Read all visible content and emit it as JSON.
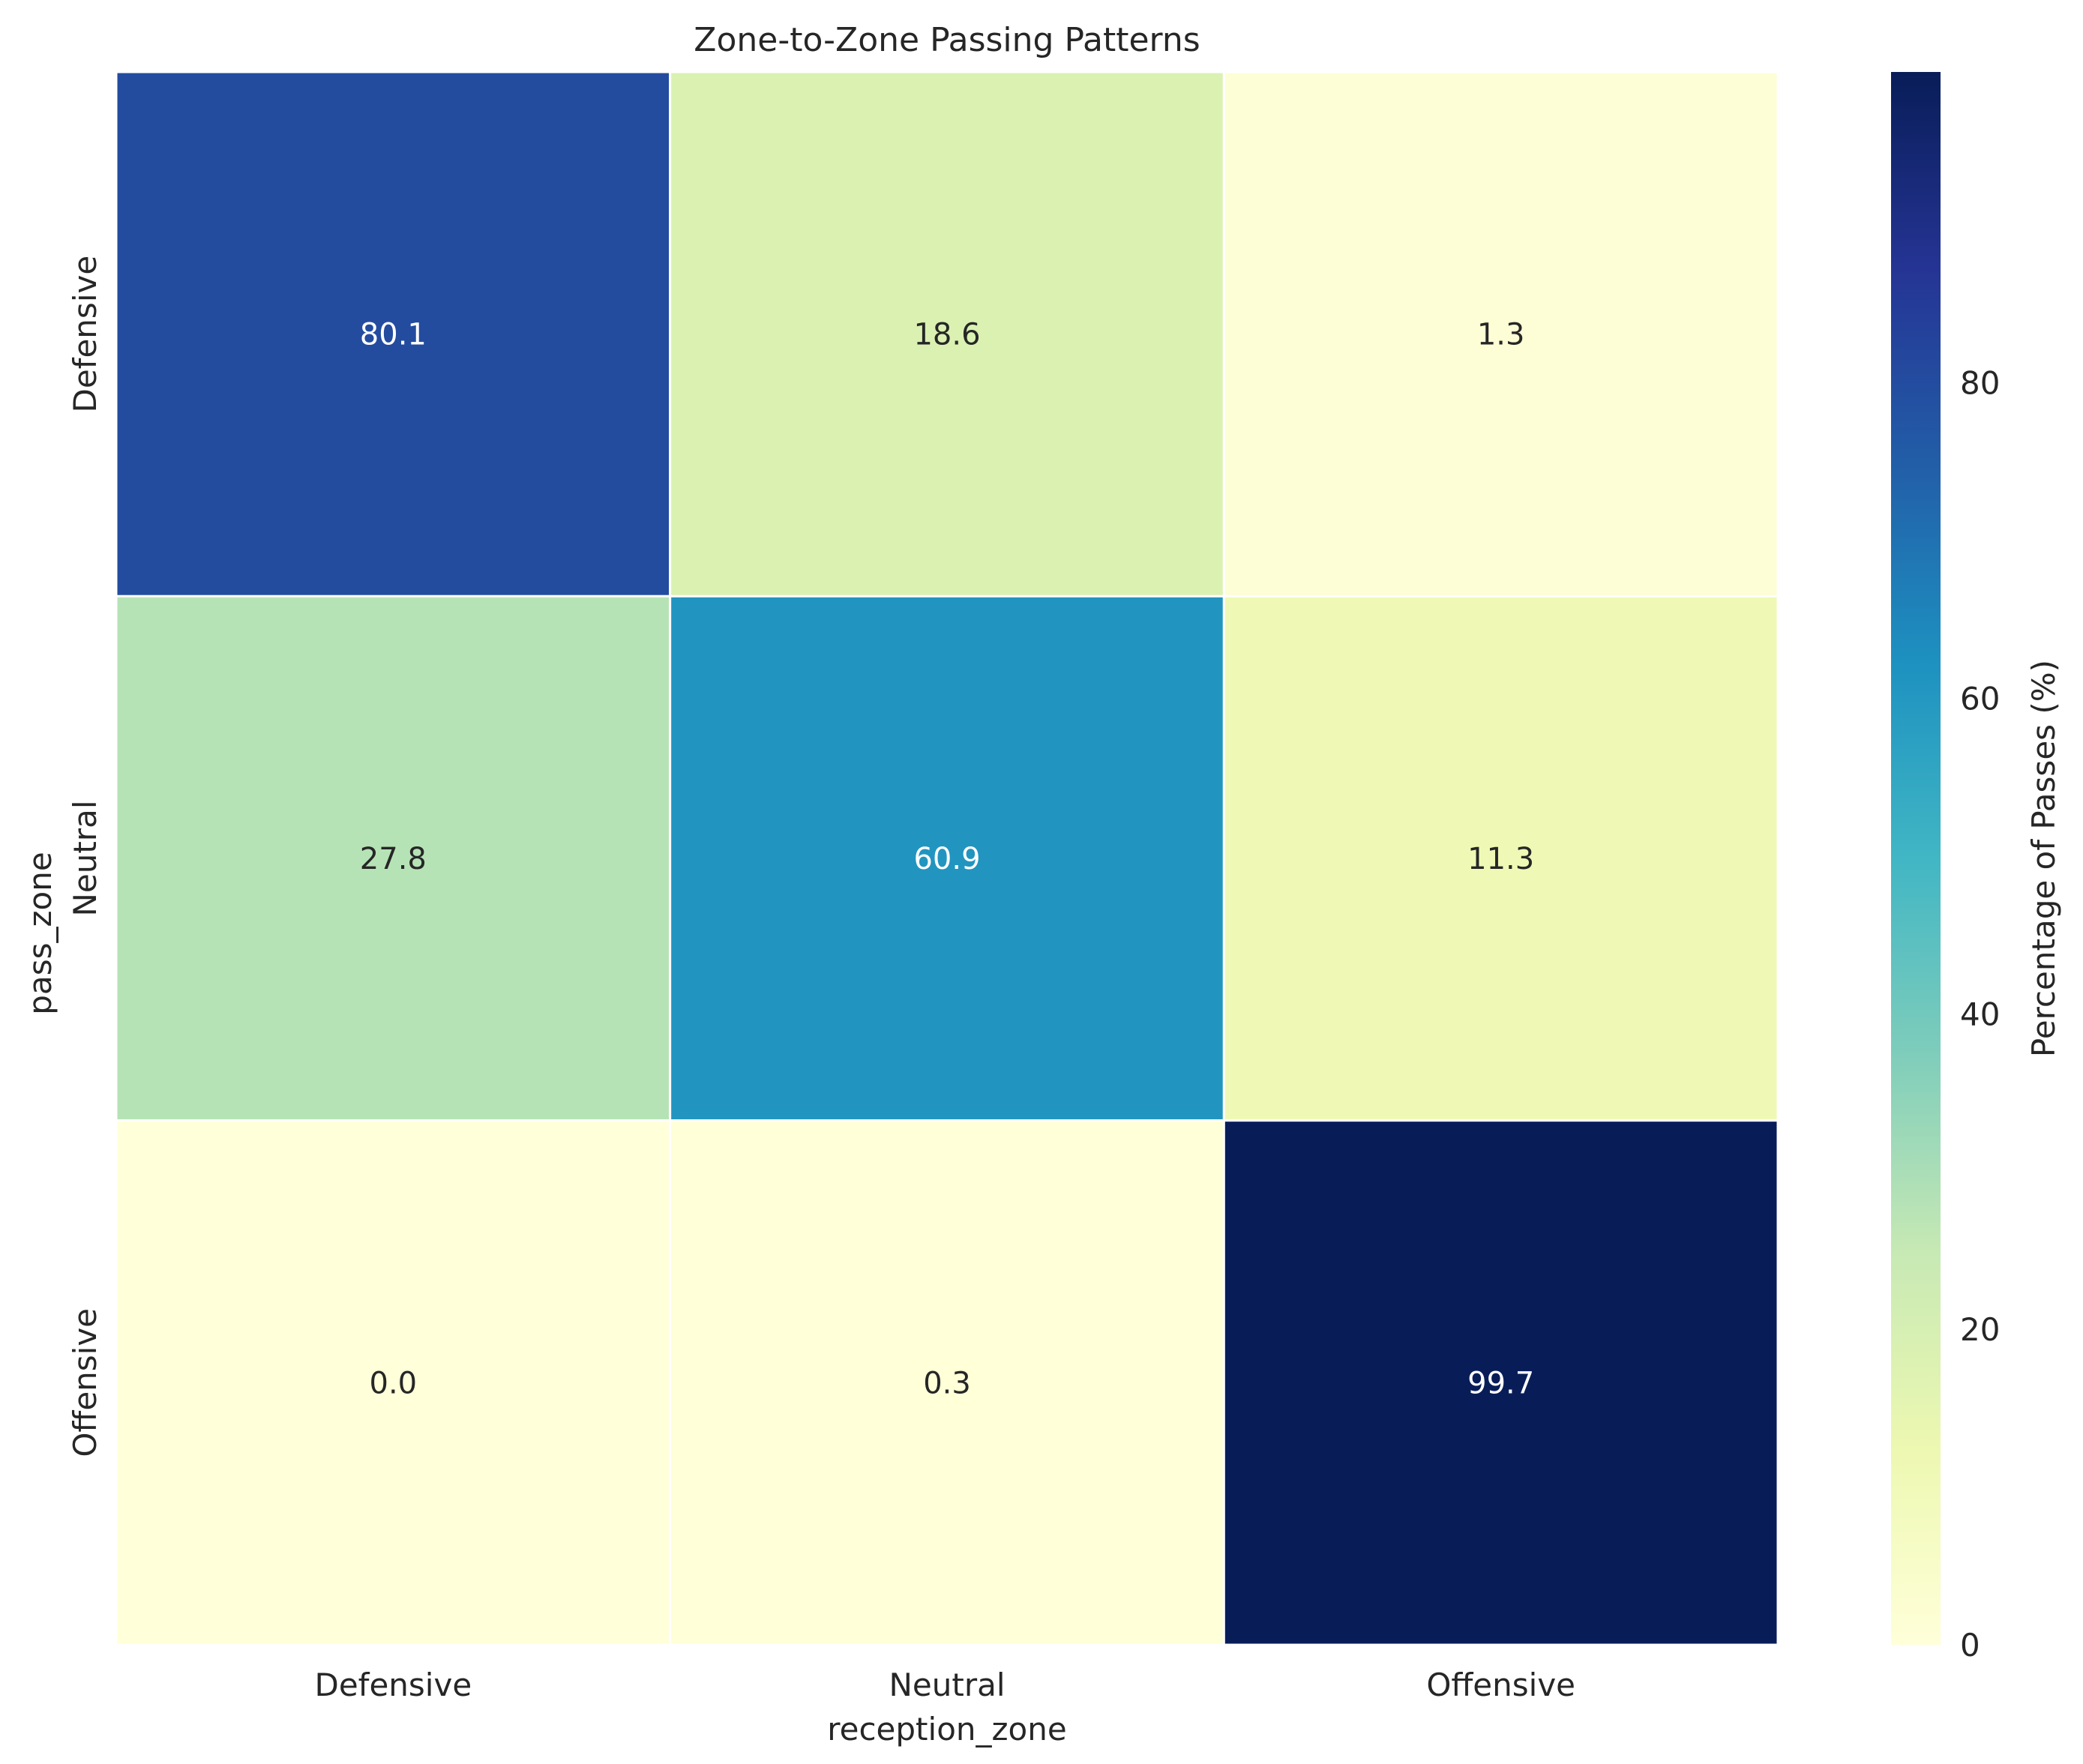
{
  "chart_data": {
    "type": "heatmap",
    "title": "Zone-to-Zone Passing Patterns",
    "xlabel": "reception_zone",
    "ylabel": "pass_zone",
    "x_categories": [
      "Defensive",
      "Neutral",
      "Offensive"
    ],
    "y_categories": [
      "Defensive",
      "Neutral",
      "Offensive"
    ],
    "values": [
      [
        80.1,
        18.6,
        1.3
      ],
      [
        27.8,
        60.9,
        11.3
      ],
      [
        0.0,
        0.3,
        99.7
      ]
    ],
    "value_labels": [
      [
        "80.1",
        "18.6",
        "1.3"
      ],
      [
        "27.8",
        "60.9",
        "11.3"
      ],
      [
        "0.0",
        "0.3",
        "99.7"
      ]
    ],
    "colorbar": {
      "label": "Percentage of Passes (%)",
      "range": [
        0,
        99.7
      ],
      "ticks": [
        0,
        20,
        40,
        60,
        80
      ],
      "colormap": "YlGnBu",
      "colors": [
        "#ffffd9",
        "#edf8b1",
        "#c7e9b4",
        "#7fcdbb",
        "#41b6c4",
        "#1d91c0",
        "#225ea8",
        "#253494",
        "#081d58"
      ]
    },
    "grid": false,
    "cell_border_color": "#ffffff"
  }
}
